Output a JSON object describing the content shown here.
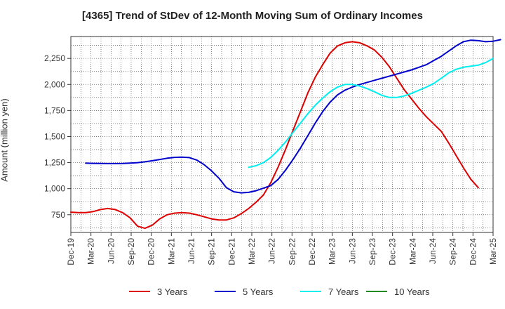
{
  "chart_data": {
    "type": "line",
    "title": "[4365]  Trend of StDev of 12-Month Moving Sum of Ordinary Incomes",
    "ylabel": "Amount (million yen)",
    "xlabel": "",
    "x_ticks": [
      "Dec-19",
      "Mar-20",
      "Jun-20",
      "Sep-20",
      "Dec-20",
      "Mar-21",
      "Jun-21",
      "Sep-21",
      "Dec-21",
      "Mar-22",
      "Jun-22",
      "Sep-22",
      "Dec-22",
      "Mar-23",
      "Jun-23",
      "Sep-23",
      "Dec-23",
      "Mar-24",
      "Jun-24",
      "Sep-24",
      "Dec-24",
      "Mar-25"
    ],
    "y_ticks": [
      750,
      1000,
      1250,
      1500,
      1750,
      2000,
      2250
    ],
    "y_tick_labels": [
      "750",
      "1,000",
      "1,250",
      "1,500",
      "1,750",
      "2,000",
      "2,250"
    ],
    "ylim": [
      580,
      2460
    ],
    "grid": true,
    "legend_position": "bottom",
    "series": [
      {
        "name": "3 Years",
        "color": "#dd0000",
        "start_index": 0,
        "values": [
          775,
          770,
          770,
          780,
          800,
          810,
          800,
          770,
          720,
          640,
          620,
          650,
          710,
          750,
          765,
          770,
          765,
          750,
          730,
          710,
          700,
          700,
          720,
          760,
          810,
          870,
          940,
          1060,
          1210,
          1380,
          1560,
          1740,
          1920,
          2070,
          2190,
          2300,
          2370,
          2400,
          2410,
          2400,
          2370,
          2330,
          2260,
          2170,
          2060,
          1950,
          1860,
          1770,
          1690,
          1620,
          1550,
          1440,
          1320,
          1200,
          1090,
          1010
        ]
      },
      {
        "name": "5 Years",
        "color": "#0000cc",
        "start_index": 2,
        "values": [
          1245,
          1243,
          1242,
          1241,
          1241,
          1242,
          1245,
          1250,
          1258,
          1268,
          1280,
          1292,
          1300,
          1303,
          1298,
          1275,
          1230,
          1170,
          1100,
          1010,
          970,
          960,
          965,
          980,
          1005,
          1030,
          1090,
          1180,
          1280,
          1390,
          1510,
          1630,
          1740,
          1830,
          1900,
          1945,
          1975,
          2000,
          2020,
          2040,
          2060,
          2080,
          2100,
          2120,
          2140,
          2165,
          2190,
          2230,
          2270,
          2320,
          2370,
          2410,
          2425,
          2420,
          2410,
          2415,
          2430
        ]
      },
      {
        "name": "7 Years",
        "color": "#00eeee",
        "start_index": 24,
        "values": [
          1205,
          1220,
          1250,
          1300,
          1370,
          1450,
          1540,
          1630,
          1720,
          1800,
          1870,
          1930,
          1975,
          2000,
          2000,
          1985,
          1960,
          1930,
          1895,
          1875,
          1875,
          1890,
          1915,
          1945,
          1975,
          2010,
          2060,
          2110,
          2145,
          2165,
          2175,
          2185,
          2210,
          2250
        ]
      },
      {
        "name": "10 Years",
        "color": "#228b22",
        "start_index": 0,
        "values": []
      }
    ]
  }
}
